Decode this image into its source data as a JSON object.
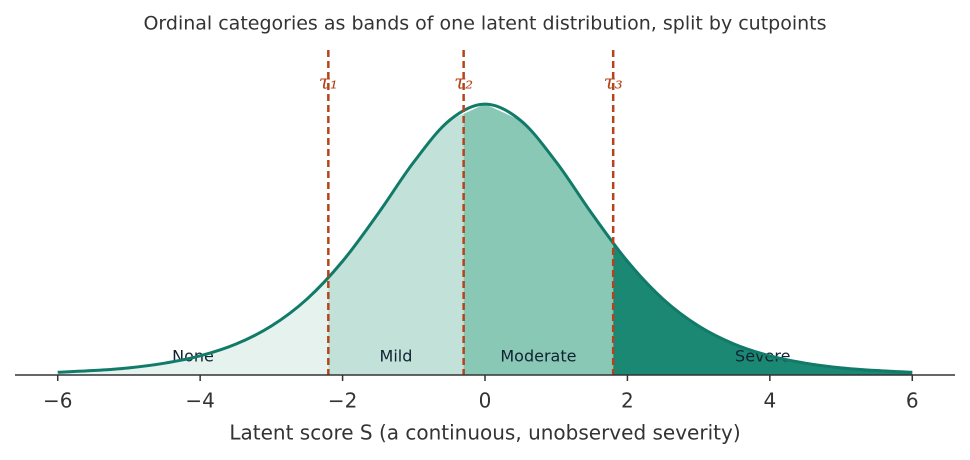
{
  "chart_data": {
    "type": "density",
    "title": "Ordinal categories as bands of one latent distribution, split by cutpoints",
    "x_label": "Latent score S  (a continuous, unobserved severity)",
    "x": [
      -6,
      -5.5,
      -5,
      -4.5,
      -4,
      -3.5,
      -3,
      -2.5,
      -2,
      -1.5,
      -1,
      -0.5,
      0,
      0.5,
      1,
      1.5,
      2,
      2.5,
      3,
      3.5,
      4,
      4.5,
      5,
      5.5,
      6
    ],
    "values": [
      0.0025,
      0.0041,
      0.0066,
      0.0109,
      0.0177,
      0.0285,
      0.0452,
      0.0701,
      0.105,
      0.1491,
      0.1966,
      0.235,
      0.25,
      0.235,
      0.1966,
      0.1491,
      0.105,
      0.0701,
      0.0452,
      0.0285,
      0.0177,
      0.0109,
      0.0066,
      0.0041,
      0.0025
    ],
    "line_color": "#117a68",
    "cutpoints": [
      {
        "value": -2.2,
        "label": "τ₁"
      },
      {
        "value": -0.3,
        "label": "τ₂"
      },
      {
        "value": 1.8,
        "label": "τ₃"
      }
    ],
    "cutpoint_color": "#b5441b",
    "bands": [
      {
        "name": "None",
        "color": "#e5f2ee"
      },
      {
        "name": "Mild",
        "color": "#c2e2d9"
      },
      {
        "name": "Moderate",
        "color": "#88c8b4"
      },
      {
        "name": "Severe",
        "color": "#1a8873"
      }
    ],
    "xlim": [
      -6.6,
      6.6
    ],
    "ylim": [
      0,
      0.3
    ],
    "xticks": [
      {
        "value": -6,
        "label": "−6"
      },
      {
        "value": -4,
        "label": "−4"
      },
      {
        "value": -2,
        "label": "−2"
      },
      0,
      2,
      4,
      6
    ]
  }
}
